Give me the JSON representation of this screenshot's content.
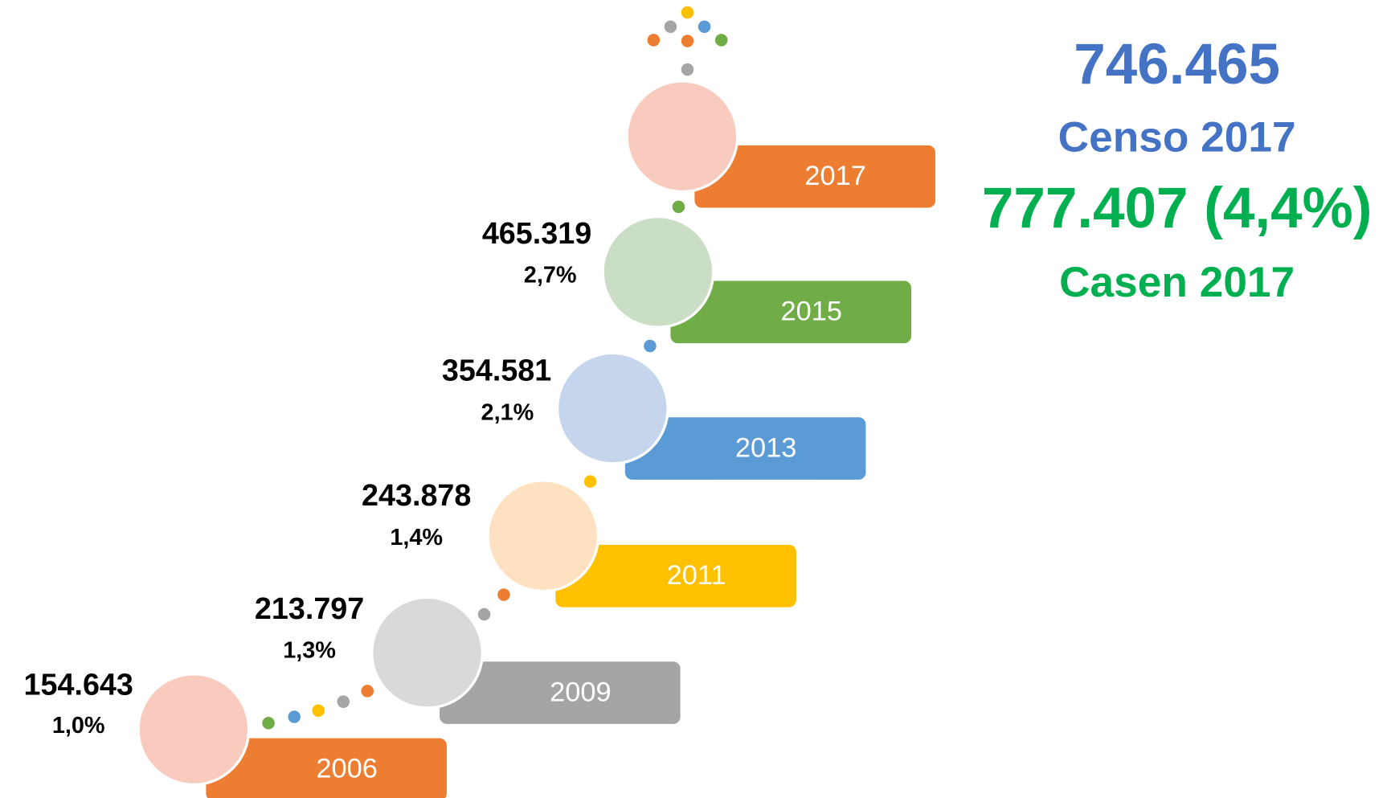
{
  "steps": [
    {
      "year": "2006",
      "value": "154.643",
      "pct": "1,0%"
    },
    {
      "year": "2009",
      "value": "213.797",
      "pct": "1,3%"
    },
    {
      "year": "2011",
      "value": "243.878",
      "pct": "1,4%"
    },
    {
      "year": "2013",
      "value": "354.581",
      "pct": "2,1%"
    },
    {
      "year": "2015",
      "value": "465.319",
      "pct": "2,7%"
    },
    {
      "year": "2017"
    }
  ],
  "summary": {
    "censo_value": "746.465",
    "censo_label": "Censo 2017",
    "casen_value": "777.407 (4,4%)",
    "casen_label": "Casen 2017"
  }
}
